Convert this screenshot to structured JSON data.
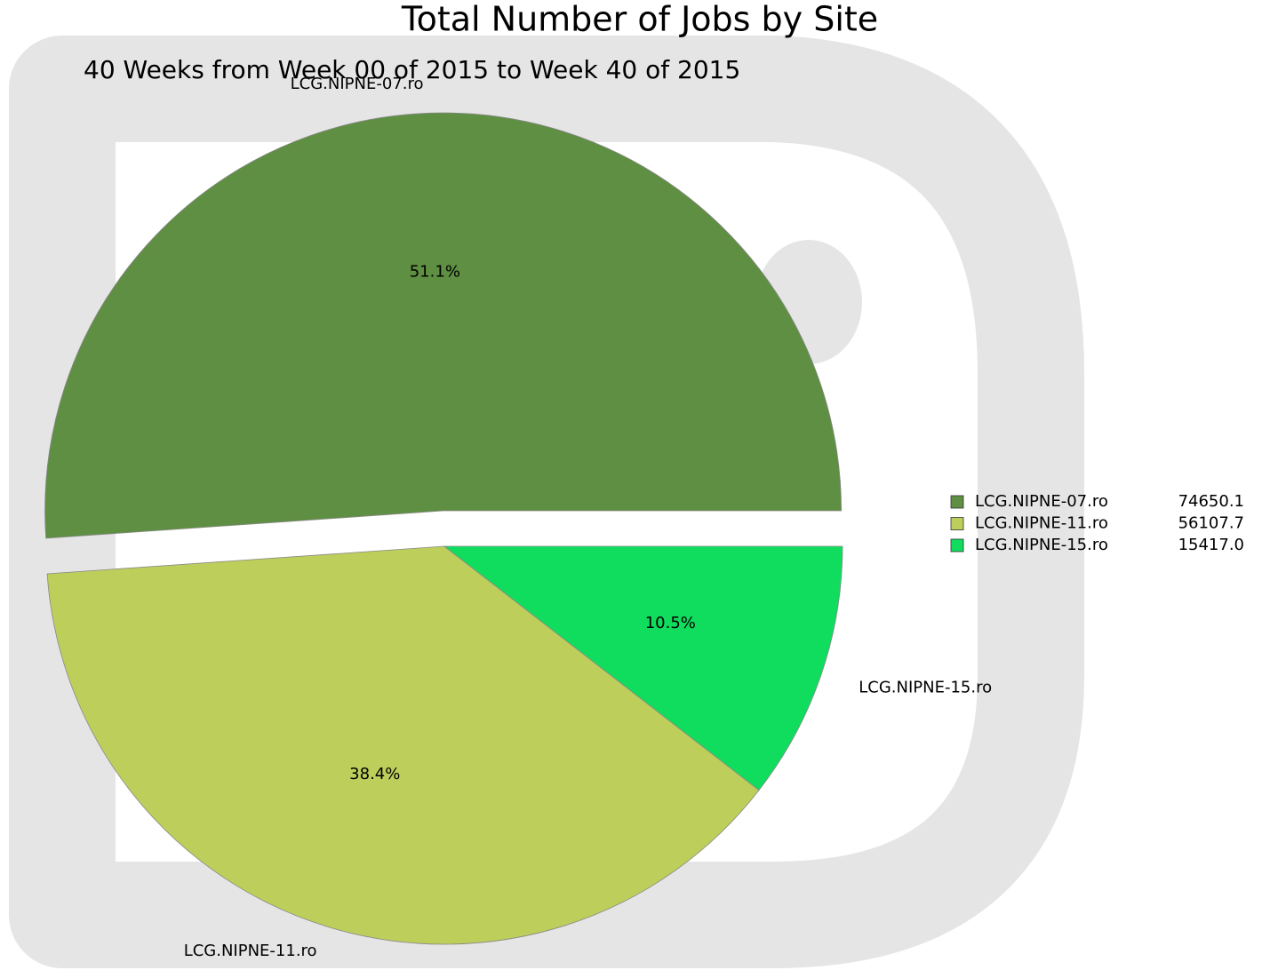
{
  "chart_data": {
    "type": "pie",
    "title": "Total Number of Jobs by Site",
    "subtitle": "40 Weeks from Week 00 of 2015 to Week 40 of 2015",
    "categories": [
      "LCG.NIPNE-07.ro",
      "LCG.NIPNE-11.ro",
      "LCG.NIPNE-15.ro"
    ],
    "values": [
      51.1,
      38.4,
      10.5
    ],
    "value_labels": [
      "51.1%",
      "38.4%",
      "10.5%"
    ],
    "totals": [
      "74650.1",
      "56107.7",
      "15417.0"
    ],
    "colors": [
      "#5f8f42",
      "#bdcf5a",
      "#10dd5e"
    ]
  }
}
